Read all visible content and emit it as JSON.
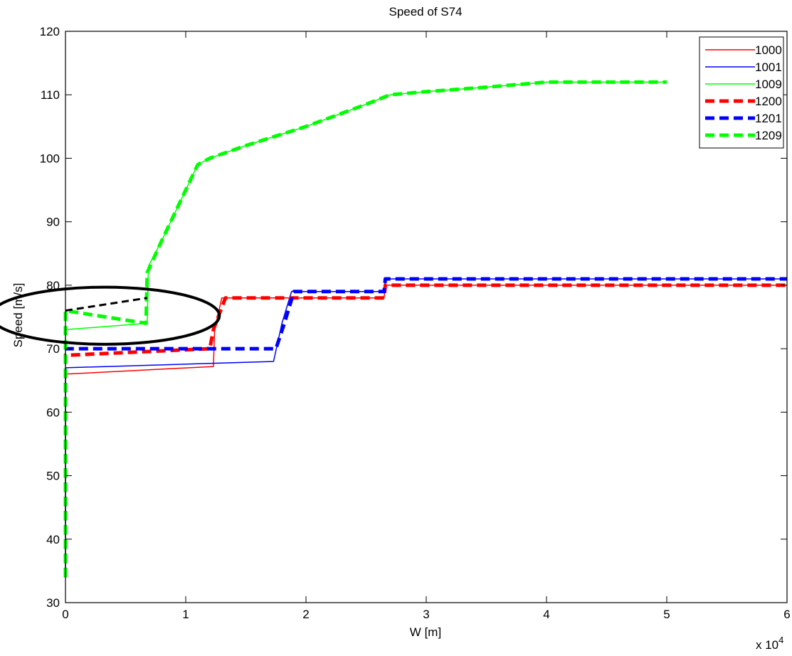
{
  "chart_data": {
    "type": "line",
    "title": "Speed of S74",
    "xlabel": "W [m]",
    "ylabel": "Speed [m/s]",
    "x_multiplier_label": "x 10",
    "x_multiplier_exponent": "4",
    "xlim": [
      0,
      60000
    ],
    "ylim": [
      30,
      120
    ],
    "x_ticks": [
      {
        "value": 0,
        "label": "0"
      },
      {
        "value": 10000,
        "label": "1"
      },
      {
        "value": 20000,
        "label": "2"
      },
      {
        "value": 30000,
        "label": "3"
      },
      {
        "value": 40000,
        "label": "4"
      },
      {
        "value": 50000,
        "label": "5"
      },
      {
        "value": 60000,
        "label": "6"
      }
    ],
    "y_ticks": [
      {
        "value": 30,
        "label": "30"
      },
      {
        "value": 40,
        "label": "40"
      },
      {
        "value": 50,
        "label": "50"
      },
      {
        "value": 60,
        "label": "60"
      },
      {
        "value": 70,
        "label": "70"
      },
      {
        "value": 80,
        "label": "80"
      },
      {
        "value": 90,
        "label": "90"
      },
      {
        "value": 100,
        "label": "100"
      },
      {
        "value": 110,
        "label": "110"
      },
      {
        "value": 120,
        "label": "120"
      }
    ],
    "grid": false,
    "legend_position": "top-right",
    "series": [
      {
        "name": "1000",
        "color": "#ff0000",
        "style": "solid",
        "x": [
          0,
          0,
          12300,
          12400,
          13000,
          17000,
          26500,
          26600,
          60000
        ],
        "y": [
          34,
          66,
          67.2,
          73,
          78,
          78,
          78,
          80,
          80
        ]
      },
      {
        "name": "1001",
        "color": "#0000ff",
        "style": "solid",
        "x": [
          0,
          0,
          17300,
          18000,
          18800,
          26500,
          26600,
          60000
        ],
        "y": [
          34,
          67,
          68,
          74,
          79,
          79,
          81,
          81
        ]
      },
      {
        "name": "1009",
        "color": "#00ff00",
        "style": "solid",
        "x": [
          0,
          0,
          6800,
          6900,
          8000,
          11000,
          12000,
          15000,
          20000,
          25000,
          27000,
          30000,
          35000,
          40000,
          50000
        ],
        "y": [
          34,
          73,
          74,
          83,
          87,
          99,
          100,
          102,
          105,
          108.5,
          110,
          110.5,
          111.2,
          112,
          112
        ]
      },
      {
        "name": "1200",
        "color": "#ff0000",
        "style": "dashed",
        "x": [
          0,
          0,
          500,
          12000,
          12300,
          13300,
          26500,
          26600,
          60000
        ],
        "y": [
          34,
          69,
          69,
          70,
          73,
          78,
          78,
          80,
          80
        ]
      },
      {
        "name": "1201",
        "color": "#0000ff",
        "style": "dashed",
        "x": [
          0,
          0,
          17500,
          18200,
          19000,
          26500,
          26600,
          60000
        ],
        "y": [
          34,
          70,
          70,
          74,
          79,
          79,
          81,
          81
        ]
      },
      {
        "name": "1209",
        "color": "#00ff00",
        "style": "dashed",
        "x": [
          0,
          0,
          6700,
          6800,
          8000,
          11000,
          12000,
          15000,
          20000,
          25000,
          27000,
          30000,
          35000,
          40000,
          50000
        ],
        "y": [
          34,
          76,
          74,
          82,
          87,
          99,
          100,
          102,
          105,
          108.5,
          110,
          110.5,
          111.2,
          112,
          112
        ]
      }
    ],
    "annotations": {
      "ellipse": {
        "cx": 3300,
        "cy": 75.2,
        "rx": 9500,
        "ry": 4.5,
        "color": "#000000"
      },
      "dashed_segment": {
        "x": [
          0,
          6800
        ],
        "y": [
          76,
          78
        ],
        "color": "#000000"
      }
    }
  }
}
